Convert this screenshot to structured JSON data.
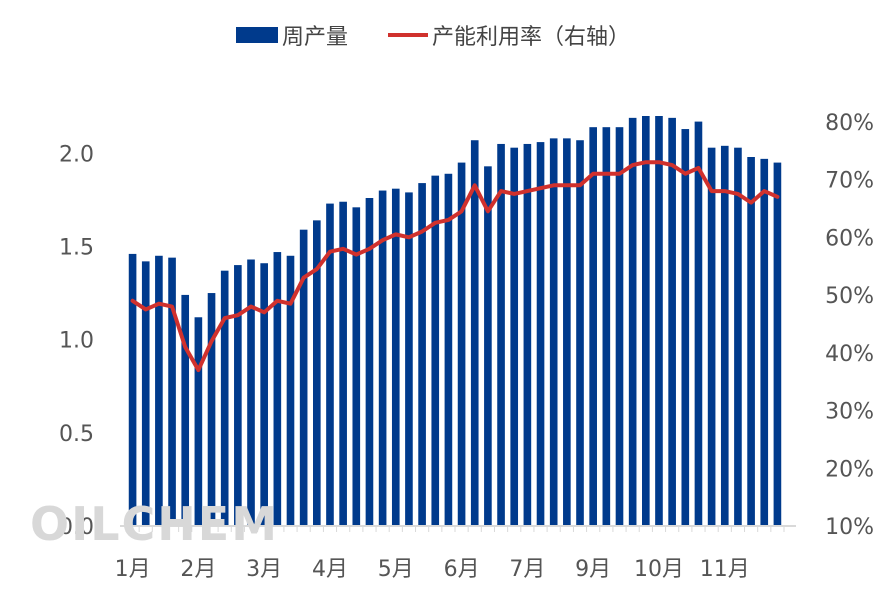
{
  "watermark": "OILCHEM",
  "colors": {
    "bar": "#003a8c",
    "line": "#d0312d",
    "axis": "#d9d9d9",
    "text": "#555555"
  },
  "chart_data": {
    "type": "bar",
    "title": "",
    "legend_position": "top-center",
    "grid": false,
    "x_tick_labels": [
      "1月",
      "2月",
      "3月",
      "4月",
      "5月",
      "6月",
      "7月",
      "9月",
      "10月",
      "11月"
    ],
    "x_tick_indices": [
      0,
      5,
      10,
      15,
      20,
      25,
      30,
      35,
      40,
      45
    ],
    "y_left": {
      "ylim": [
        0,
        2.2
      ],
      "ticks": [
        "0.0",
        "0.5",
        "1.0",
        "1.5",
        "2.0"
      ],
      "tick_values": [
        0,
        0.5,
        1.0,
        1.5,
        2.0
      ]
    },
    "y_right": {
      "ylim": [
        10,
        81
      ],
      "ticks": [
        "10%",
        "20%",
        "30%",
        "40%",
        "50%",
        "60%",
        "70%",
        "80%"
      ],
      "tick_values": [
        10,
        20,
        30,
        40,
        50,
        60,
        70,
        80
      ]
    },
    "series": [
      {
        "name": "周产量",
        "type": "bar",
        "axis": "left",
        "values": [
          1.46,
          1.42,
          1.45,
          1.44,
          1.24,
          1.12,
          1.25,
          1.37,
          1.4,
          1.43,
          1.41,
          1.47,
          1.45,
          1.59,
          1.64,
          1.73,
          1.74,
          1.71,
          1.76,
          1.8,
          1.81,
          1.79,
          1.84,
          1.88,
          1.89,
          1.95,
          2.07,
          1.93,
          2.05,
          2.03,
          2.05,
          2.06,
          2.08,
          2.08,
          2.07,
          2.14,
          2.14,
          2.14,
          2.19,
          2.2,
          2.2,
          2.19,
          2.13,
          2.17,
          2.03,
          2.04,
          2.03,
          1.98,
          1.97,
          1.95
        ]
      },
      {
        "name": "产能利用率（右轴）",
        "type": "line",
        "axis": "right",
        "values": [
          49,
          47.5,
          48.5,
          48,
          41,
          37,
          42,
          46,
          46.5,
          48,
          47,
          49,
          48.5,
          53,
          54.5,
          57.5,
          58,
          57,
          58,
          59.5,
          60.5,
          60,
          61,
          62.5,
          63,
          64.5,
          69,
          64.5,
          68,
          67.5,
          68,
          68.5,
          69,
          69,
          69,
          71,
          71,
          71,
          72.5,
          73,
          73,
          72.5,
          71,
          72,
          68,
          68,
          67.5,
          66,
          68,
          67
        ]
      }
    ]
  }
}
